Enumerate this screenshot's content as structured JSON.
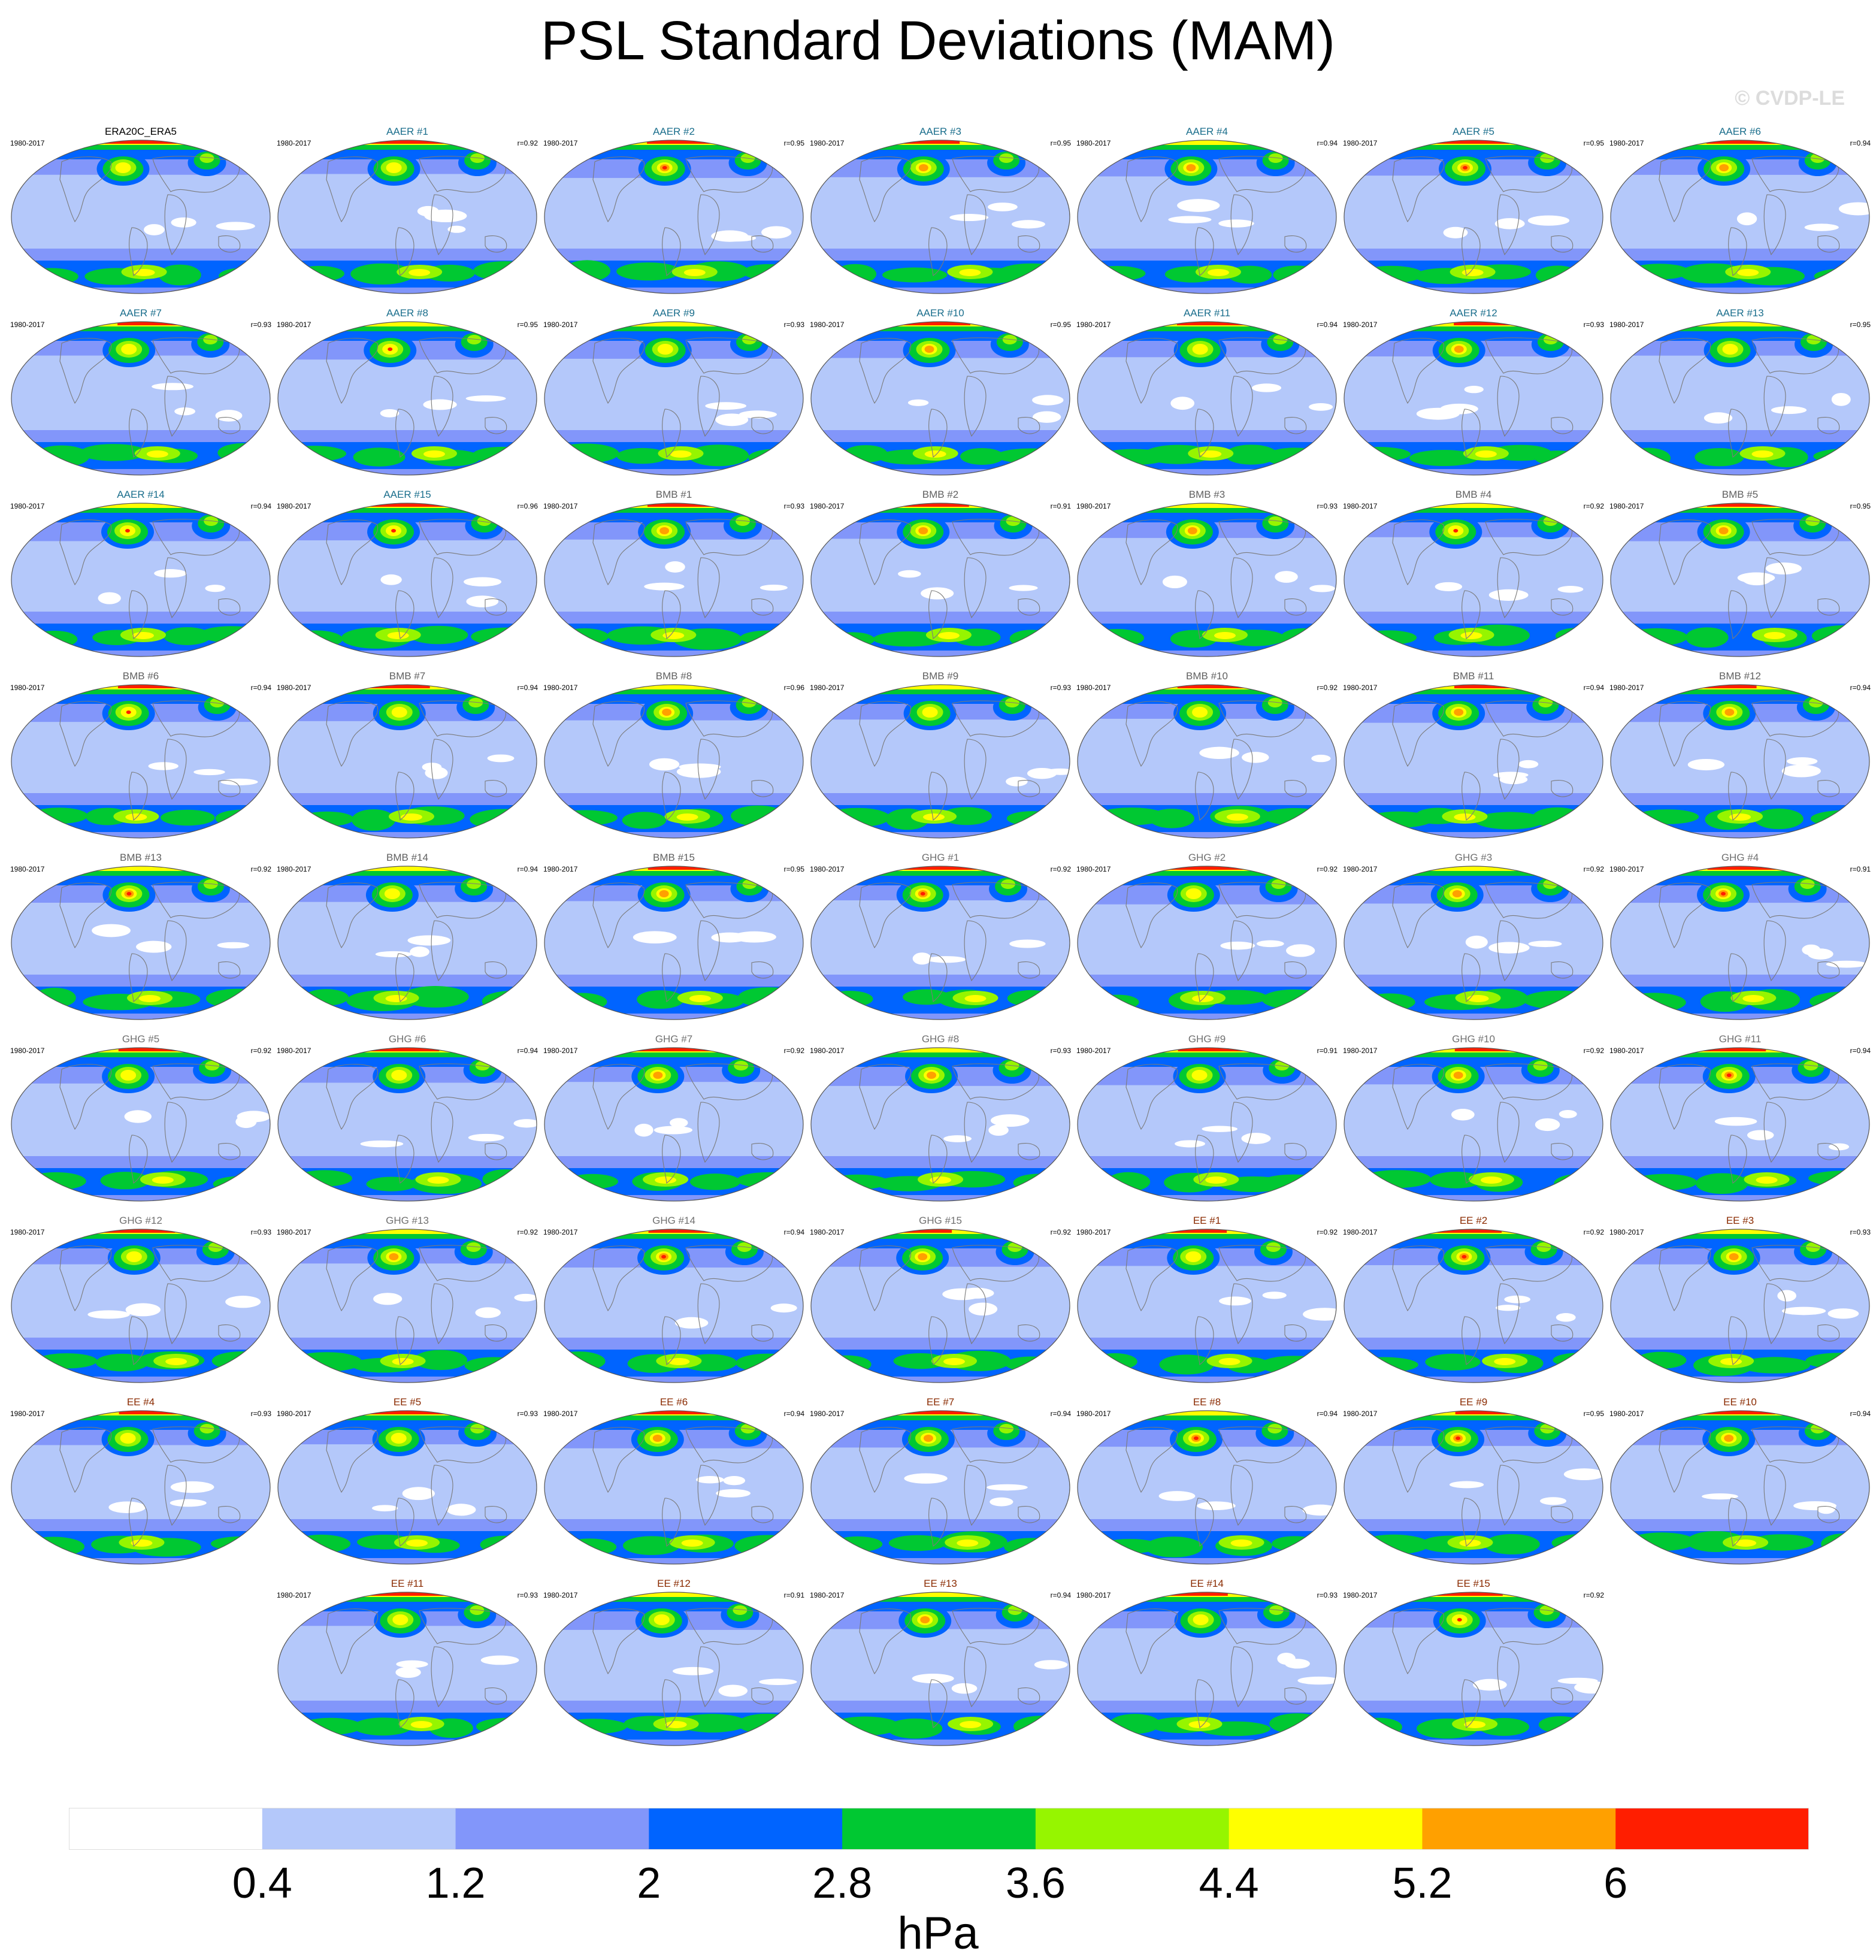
{
  "title": "PSL Standard Deviations (MAM)",
  "watermark": "© CVDP-LE",
  "units": "hPa",
  "colorbar": {
    "labels": [
      "0.4",
      "1.2",
      "2",
      "2.8",
      "3.6",
      "4.4",
      "5.2",
      "6"
    ],
    "colors": [
      "#ffffff",
      "#b4c8fa",
      "#8296fa",
      "#0064ff",
      "#00c832",
      "#96f500",
      "#ffff00",
      "#ffa000",
      "#ff1e00"
    ]
  },
  "group_colors": {
    "OBS": "#000000",
    "AAER": "#1a6e8c",
    "BMB": "#606060",
    "GHG": "#707070",
    "EE": "#8a2a00"
  },
  "panels": [
    {
      "title": "ERA20C_ERA5",
      "years": "1980-2017",
      "r": "",
      "group": "OBS"
    },
    {
      "title": "AAER #1",
      "years": "1980-2017",
      "r": "r=0.92",
      "group": "AAER"
    },
    {
      "title": "AAER #2",
      "years": "1980-2017",
      "r": "r=0.95",
      "group": "AAER"
    },
    {
      "title": "AAER #3",
      "years": "1980-2017",
      "r": "r=0.95",
      "group": "AAER"
    },
    {
      "title": "AAER #4",
      "years": "1980-2017",
      "r": "r=0.94",
      "group": "AAER"
    },
    {
      "title": "AAER #5",
      "years": "1980-2017",
      "r": "r=0.95",
      "group": "AAER"
    },
    {
      "title": "AAER #6",
      "years": "1980-2017",
      "r": "r=0.94",
      "group": "AAER"
    },
    {
      "title": "AAER #7",
      "years": "1980-2017",
      "r": "r=0.93",
      "group": "AAER"
    },
    {
      "title": "AAER #8",
      "years": "1980-2017",
      "r": "r=0.95",
      "group": "AAER"
    },
    {
      "title": "AAER #9",
      "years": "1980-2017",
      "r": "r=0.93",
      "group": "AAER"
    },
    {
      "title": "AAER #10",
      "years": "1980-2017",
      "r": "r=0.95",
      "group": "AAER"
    },
    {
      "title": "AAER #11",
      "years": "1980-2017",
      "r": "r=0.94",
      "group": "AAER"
    },
    {
      "title": "AAER #12",
      "years": "1980-2017",
      "r": "r=0.93",
      "group": "AAER"
    },
    {
      "title": "AAER #13",
      "years": "1980-2017",
      "r": "r=0.95",
      "group": "AAER"
    },
    {
      "title": "AAER #14",
      "years": "1980-2017",
      "r": "r=0.94",
      "group": "AAER"
    },
    {
      "title": "AAER #15",
      "years": "1980-2017",
      "r": "r=0.96",
      "group": "AAER"
    },
    {
      "title": "BMB #1",
      "years": "1980-2017",
      "r": "r=0.93",
      "group": "BMB"
    },
    {
      "title": "BMB #2",
      "years": "1980-2017",
      "r": "r=0.91",
      "group": "BMB"
    },
    {
      "title": "BMB #3",
      "years": "1980-2017",
      "r": "r=0.93",
      "group": "BMB"
    },
    {
      "title": "BMB #4",
      "years": "1980-2017",
      "r": "r=0.92",
      "group": "BMB"
    },
    {
      "title": "BMB #5",
      "years": "1980-2017",
      "r": "r=0.95",
      "group": "BMB"
    },
    {
      "title": "BMB #6",
      "years": "1980-2017",
      "r": "r=0.94",
      "group": "BMB"
    },
    {
      "title": "BMB #7",
      "years": "1980-2017",
      "r": "r=0.94",
      "group": "BMB"
    },
    {
      "title": "BMB #8",
      "years": "1980-2017",
      "r": "r=0.96",
      "group": "BMB"
    },
    {
      "title": "BMB #9",
      "years": "1980-2017",
      "r": "r=0.93",
      "group": "BMB"
    },
    {
      "title": "BMB #10",
      "years": "1980-2017",
      "r": "r=0.92",
      "group": "BMB"
    },
    {
      "title": "BMB #11",
      "years": "1980-2017",
      "r": "r=0.94",
      "group": "BMB"
    },
    {
      "title": "BMB #12",
      "years": "1980-2017",
      "r": "r=0.94",
      "group": "BMB"
    },
    {
      "title": "BMB #13",
      "years": "1980-2017",
      "r": "r=0.92",
      "group": "BMB"
    },
    {
      "title": "BMB #14",
      "years": "1980-2017",
      "r": "r=0.94",
      "group": "BMB"
    },
    {
      "title": "BMB #15",
      "years": "1980-2017",
      "r": "r=0.95",
      "group": "BMB"
    },
    {
      "title": "GHG #1",
      "years": "1980-2017",
      "r": "r=0.92",
      "group": "GHG"
    },
    {
      "title": "GHG #2",
      "years": "1980-2017",
      "r": "r=0.92",
      "group": "GHG"
    },
    {
      "title": "GHG #3",
      "years": "1980-2017",
      "r": "r=0.92",
      "group": "GHG"
    },
    {
      "title": "GHG #4",
      "years": "1980-2017",
      "r": "r=0.91",
      "group": "GHG"
    },
    {
      "title": "GHG #5",
      "years": "1980-2017",
      "r": "r=0.92",
      "group": "GHG"
    },
    {
      "title": "GHG #6",
      "years": "1980-2017",
      "r": "r=0.94",
      "group": "GHG"
    },
    {
      "title": "GHG #7",
      "years": "1980-2017",
      "r": "r=0.92",
      "group": "GHG"
    },
    {
      "title": "GHG #8",
      "years": "1980-2017",
      "r": "r=0.93",
      "group": "GHG"
    },
    {
      "title": "GHG #9",
      "years": "1980-2017",
      "r": "r=0.91",
      "group": "GHG"
    },
    {
      "title": "GHG #10",
      "years": "1980-2017",
      "r": "r=0.92",
      "group": "GHG"
    },
    {
      "title": "GHG #11",
      "years": "1980-2017",
      "r": "r=0.94",
      "group": "GHG"
    },
    {
      "title": "GHG #12",
      "years": "1980-2017",
      "r": "r=0.93",
      "group": "GHG"
    },
    {
      "title": "GHG #13",
      "years": "1980-2017",
      "r": "r=0.92",
      "group": "GHG"
    },
    {
      "title": "GHG #14",
      "years": "1980-2017",
      "r": "r=0.94",
      "group": "GHG"
    },
    {
      "title": "GHG #15",
      "years": "1980-2017",
      "r": "r=0.92",
      "group": "GHG"
    },
    {
      "title": "EE #1",
      "years": "1980-2017",
      "r": "r=0.92",
      "group": "EE"
    },
    {
      "title": "EE #2",
      "years": "1980-2017",
      "r": "r=0.92",
      "group": "EE"
    },
    {
      "title": "EE #3",
      "years": "1980-2017",
      "r": "r=0.93",
      "group": "EE"
    },
    {
      "title": "EE #4",
      "years": "1980-2017",
      "r": "r=0.93",
      "group": "EE"
    },
    {
      "title": "EE #5",
      "years": "1980-2017",
      "r": "r=0.93",
      "group": "EE"
    },
    {
      "title": "EE #6",
      "years": "1980-2017",
      "r": "r=0.94",
      "group": "EE"
    },
    {
      "title": "EE #7",
      "years": "1980-2017",
      "r": "r=0.94",
      "group": "EE"
    },
    {
      "title": "EE #8",
      "years": "1980-2017",
      "r": "r=0.94",
      "group": "EE"
    },
    {
      "title": "EE #9",
      "years": "1980-2017",
      "r": "r=0.95",
      "group": "EE"
    },
    {
      "title": "EE #10",
      "years": "1980-2017",
      "r": "r=0.94",
      "group": "EE"
    },
    {
      "title": "EE #11",
      "years": "1980-2017",
      "r": "r=0.93",
      "group": "EE"
    },
    {
      "title": "EE #12",
      "years": "1980-2017",
      "r": "r=0.91",
      "group": "EE"
    },
    {
      "title": "EE #13",
      "years": "1980-2017",
      "r": "r=0.94",
      "group": "EE"
    },
    {
      "title": "EE #14",
      "years": "1980-2017",
      "r": "r=0.93",
      "group": "EE"
    },
    {
      "title": "EE #15",
      "years": "1980-2017",
      "r": "r=0.92",
      "group": "EE"
    }
  ]
}
